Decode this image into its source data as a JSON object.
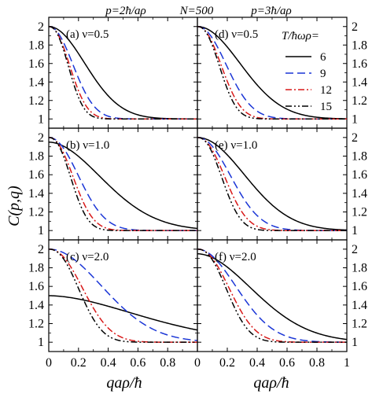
{
  "header": {
    "left": "p=2ħ/aρ",
    "center": "N=500",
    "right": "p=3ħ/aρ"
  },
  "chart_data": {
    "type": "line",
    "ylabel": "C(p,q)",
    "xlabel": "qaρ/ħ",
    "xlim": [
      0,
      1
    ],
    "ylim": [
      0.9,
      2.1
    ],
    "x_ticks": [
      "0",
      "0.2",
      "0.4",
      "0.6",
      "0.8",
      "1"
    ],
    "y_ticks": [
      "1",
      "1.2",
      "1.4",
      "1.6",
      "1.8",
      "2"
    ],
    "legend": {
      "title": "T/ħωρ=",
      "placement": "top-right of panel (d)",
      "entries": [
        "6",
        "9",
        "12",
        "15"
      ]
    },
    "series_styles": [
      {
        "color": "#000000",
        "dash": "solid"
      },
      {
        "color": "#1a35d6",
        "dash": "dashed"
      },
      {
        "color": "#d81818",
        "dash": "dash-dot"
      },
      {
        "color": "#000000",
        "dash": "dash-dot-dot"
      }
    ],
    "panels": [
      {
        "label": "(a) ν=0.5",
        "a": [
          1.0,
          1.0,
          1.0,
          1.0
        ],
        "w": [
          0.34,
          0.22,
          0.185,
          0.17
        ],
        "p": [
          2.0,
          2.1,
          2.2,
          2.3
        ]
      },
      {
        "label": "(b) ν=1.0",
        "a": [
          0.95,
          1.0,
          1.0,
          1.0
        ],
        "w": [
          0.5,
          0.27,
          0.215,
          0.19
        ],
        "p": [
          1.9,
          2.1,
          2.2,
          2.3
        ]
      },
      {
        "label": "(c) ν=2.0",
        "a": [
          0.5,
          1.0,
          1.0,
          1.0
        ],
        "w": [
          0.85,
          0.5,
          0.3,
          0.26
        ],
        "p": [
          1.8,
          2.0,
          2.2,
          2.3
        ]
      },
      {
        "label": "(d) ν=0.5",
        "a": [
          1.0,
          1.0,
          1.0,
          1.0
        ],
        "w": [
          0.4,
          0.26,
          0.21,
          0.19
        ],
        "p": [
          2.0,
          2.1,
          2.2,
          2.3
        ]
      },
      {
        "label": "(e) ν=1.0",
        "a": [
          1.0,
          1.0,
          1.0,
          1.0
        ],
        "w": [
          0.44,
          0.3,
          0.24,
          0.21
        ],
        "p": [
          2.0,
          2.1,
          2.2,
          2.3
        ]
      },
      {
        "label": "(f) ν=2.0",
        "a": [
          0.95,
          1.0,
          1.0,
          1.0
        ],
        "w": [
          0.52,
          0.36,
          0.28,
          0.25
        ],
        "p": [
          1.9,
          2.0,
          2.2,
          2.3
        ]
      }
    ]
  }
}
